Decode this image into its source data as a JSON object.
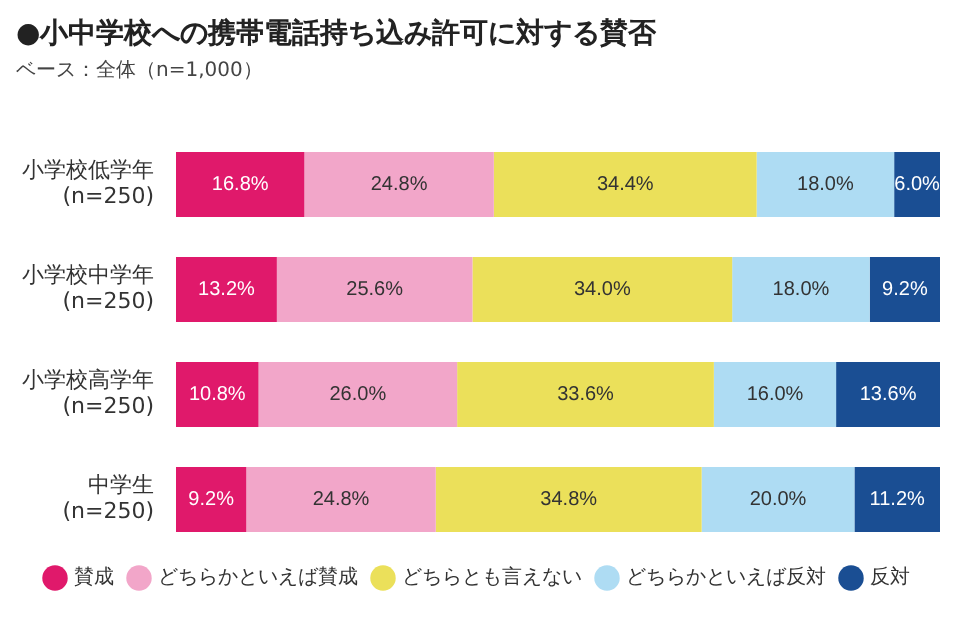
{
  "chart_data": {
    "type": "bar",
    "orientation": "horizontal",
    "stacked": true,
    "title": "●小中学校への携帯電話持ち込み許可に対する賛否",
    "subtitle": "ベース：全体（n=1,000）",
    "categories": [
      "小学校低学年\n(n=250)",
      "小学校中学年\n(n=250)",
      "小学校高学年\n(n=250)",
      "中学生\n(n=250)"
    ],
    "tick_labels": "y",
    "legend": "bottom",
    "marker": "circle",
    "series": [
      {
        "name": "賛成",
        "color": "#e0196b",
        "values": [
          16.8,
          13.2,
          10.8,
          9.2
        ],
        "value_labels": [
          "16.8%",
          "13.2%",
          "10.8%",
          "9.2%"
        ]
      },
      {
        "name": "どちらかといえば賛成",
        "color": "#f2a6c9",
        "values": [
          24.8,
          25.6,
          26.0,
          24.8
        ],
        "value_labels": [
          "24.8%",
          "25.6%",
          "26.0%",
          "24.8%"
        ]
      },
      {
        "name": "どちらとも言えない",
        "color": "#ebe05a",
        "values": [
          34.4,
          34.0,
          33.6,
          34.8
        ],
        "value_labels": [
          "34.4%",
          "34.0%",
          "33.6%",
          "34.8%"
        ]
      },
      {
        "name": "どちらかといえば反対",
        "color": "#aedcf3",
        "values": [
          18.0,
          18.0,
          16.0,
          20.0
        ],
        "value_labels": [
          "18.0%",
          "18.0%",
          "16.0%",
          "20.0%"
        ]
      },
      {
        "name": "反対",
        "color": "#1a4e93",
        "values": [
          6.0,
          9.2,
          13.6,
          11.2
        ],
        "value_labels": [
          "6.0%",
          "9.2%",
          "13.6%",
          "11.2%"
        ]
      }
    ]
  }
}
